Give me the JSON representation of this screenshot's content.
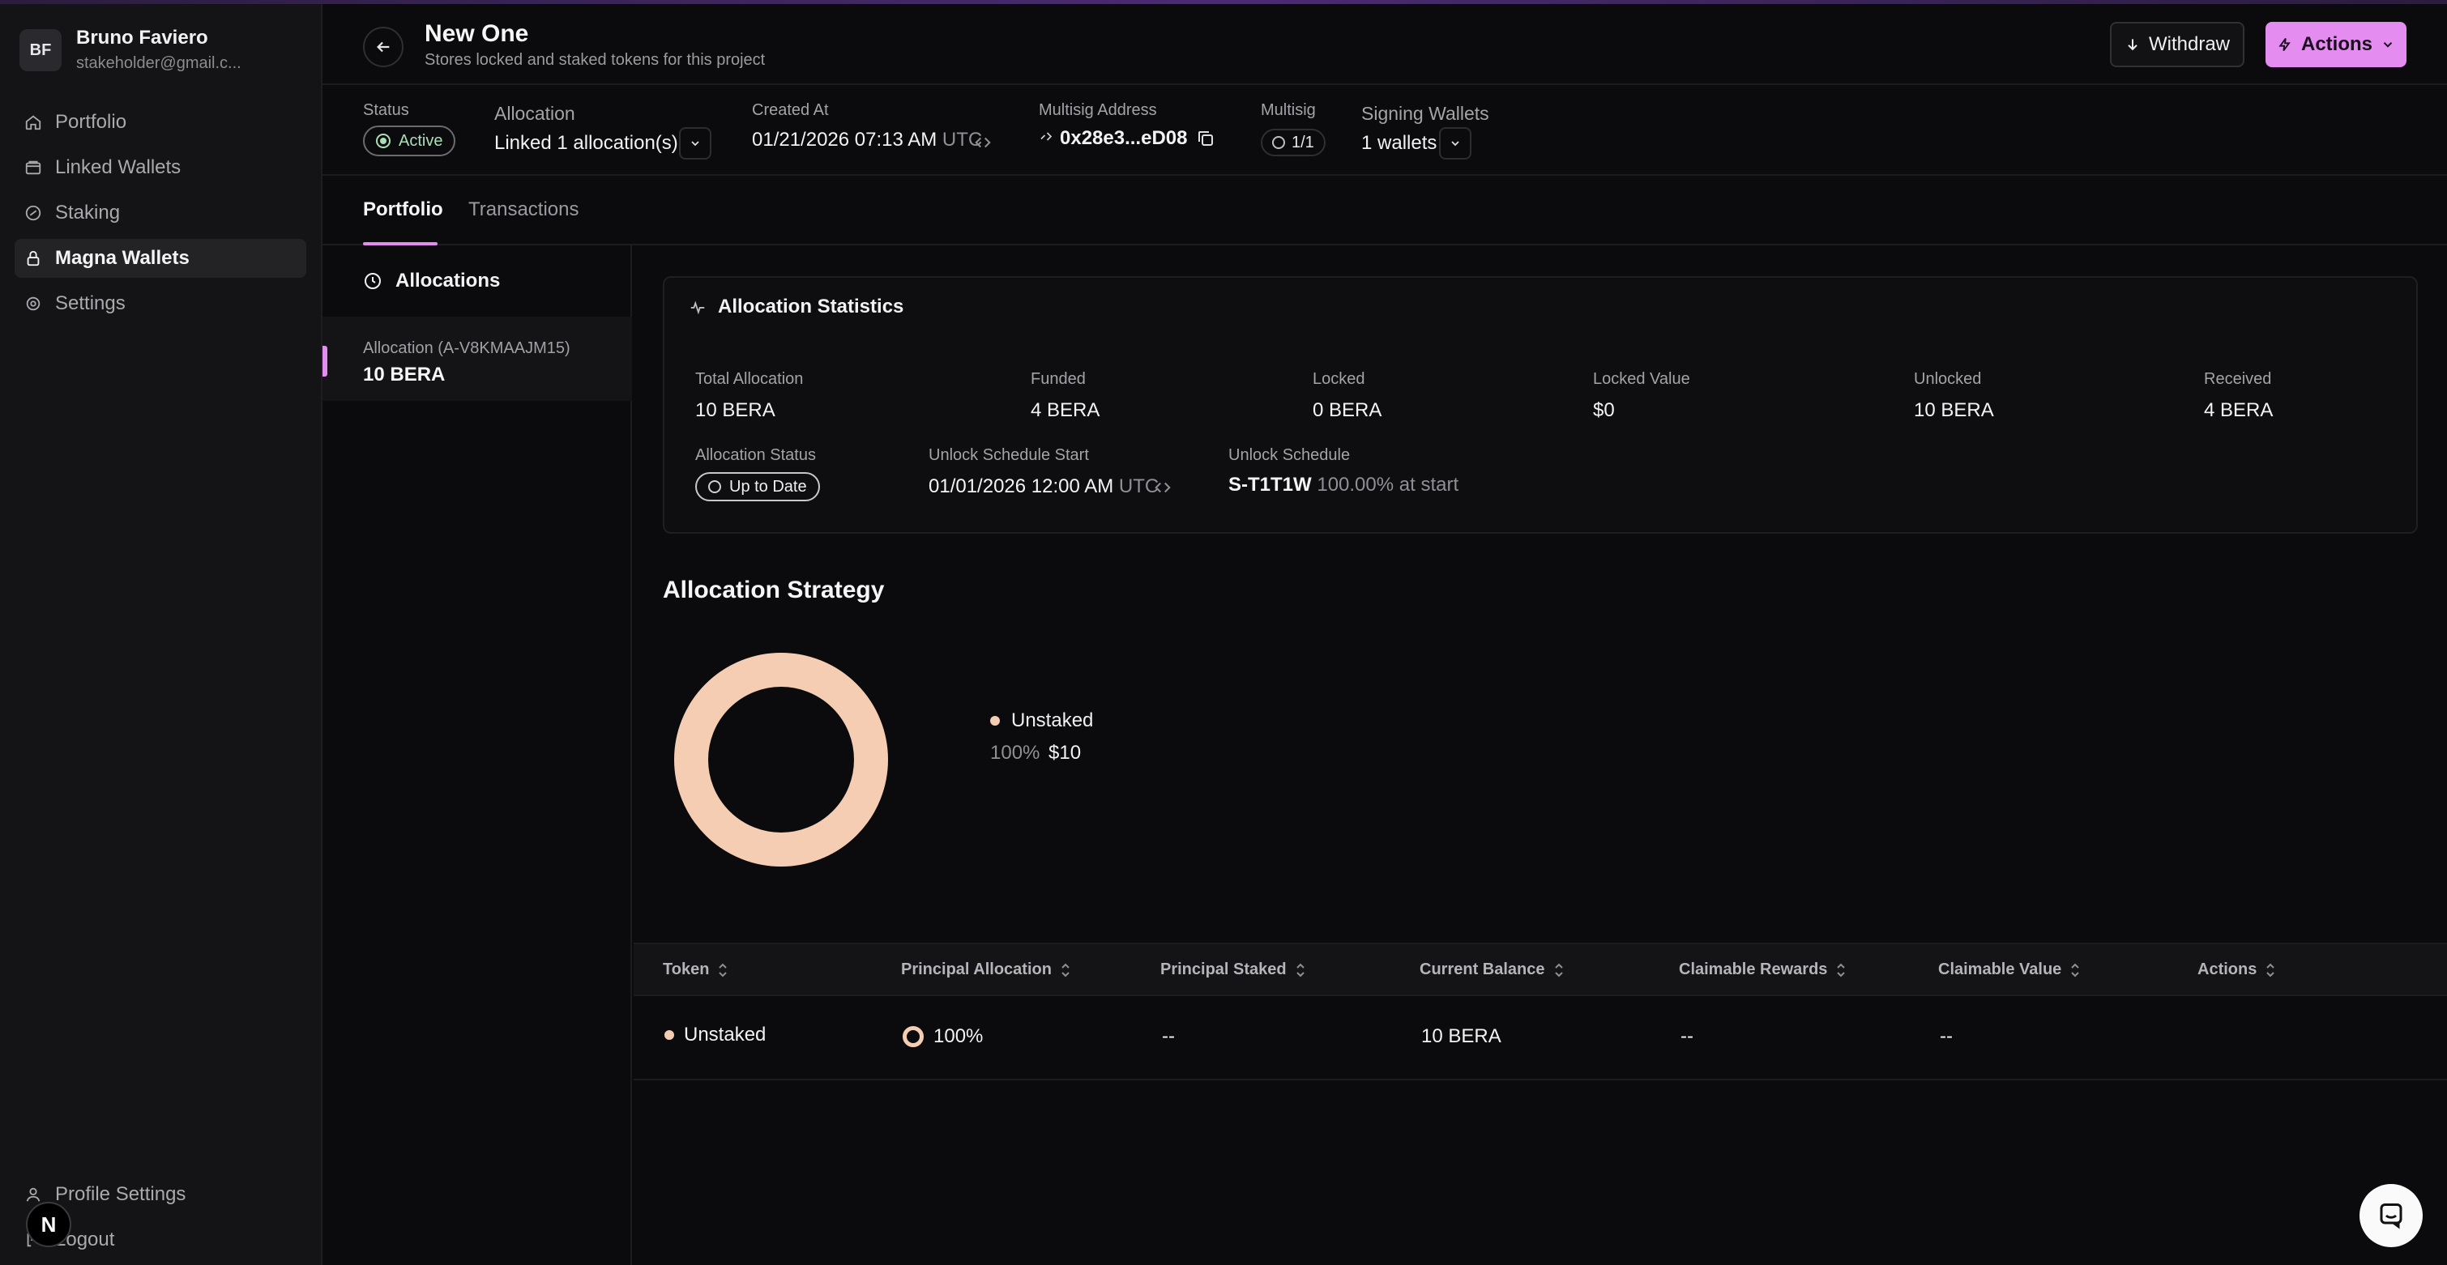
{
  "user": {
    "initials": "BF",
    "name": "Bruno Faviero",
    "email": "stakeholder@gmail.c..."
  },
  "nav": [
    {
      "label": "Portfolio",
      "icon": "home-icon",
      "active": false
    },
    {
      "label": "Linked Wallets",
      "icon": "wallet-icon",
      "active": false
    },
    {
      "label": "Staking",
      "icon": "staking-icon",
      "active": false
    },
    {
      "label": "Magna Wallets",
      "icon": "lock-icon",
      "active": true
    },
    {
      "label": "Settings",
      "icon": "gear-icon",
      "active": false
    }
  ],
  "bottom_nav": [
    {
      "label": "Profile Settings",
      "icon": "user-icon"
    },
    {
      "label": "Logout",
      "icon": "logout-icon"
    }
  ],
  "badge": {
    "letter": "N"
  },
  "header": {
    "title": "New One",
    "subtitle": "Stores locked and staked tokens for this project",
    "withdraw_label": "Withdraw",
    "actions_label": "Actions"
  },
  "info": {
    "status_label": "Status",
    "status_value": "Active",
    "allocation_label": "Allocation",
    "allocation_value": "Linked 1 allocation(s)",
    "created_label": "Created At",
    "created_value": "01/21/2026 07:13 AM",
    "created_tz": "UTC",
    "multisig_address_label": "Multisig Address",
    "multisig_address_value": "0x28e3...eD08",
    "multisig_label": "Multisig",
    "multisig_value": "1/1",
    "signing_label": "Signing Wallets",
    "signing_value": "1 wallets"
  },
  "tabs": [
    {
      "label": "Portfolio",
      "active": true
    },
    {
      "label": "Transactions",
      "active": false
    }
  ],
  "allocations": {
    "heading": "Allocations",
    "items": [
      {
        "name": "Allocation (A-V8KMAAJM15)",
        "amount": "10 BERA"
      }
    ]
  },
  "stats": {
    "title": "Allocation Statistics",
    "total_allocation": {
      "label": "Total Allocation",
      "value": "10 BERA"
    },
    "funded": {
      "label": "Funded",
      "value": "4 BERA"
    },
    "locked": {
      "label": "Locked",
      "value": "0 BERA"
    },
    "locked_value": {
      "label": "Locked Value",
      "value": "$0"
    },
    "unlocked": {
      "label": "Unlocked",
      "value": "10 BERA"
    },
    "received": {
      "label": "Received",
      "value": "4 BERA"
    },
    "allocation_status": {
      "label": "Allocation Status",
      "value": "Up to Date"
    },
    "unlock_start": {
      "label": "Unlock Schedule Start",
      "value": "01/01/2026 12:00 AM",
      "tz": "UTC"
    },
    "unlock_schedule": {
      "label": "Unlock Schedule",
      "id": "S-T1T1W",
      "desc": "100.00% at start"
    }
  },
  "strategy": {
    "title": "Allocation Strategy",
    "legend_name": "Unstaked",
    "legend_pct": "100%",
    "legend_value": "$10",
    "color": "#f5cdb2"
  },
  "chart_data": {
    "type": "pie",
    "categories": [
      "Unstaked"
    ],
    "values": [
      100
    ]
  },
  "table": {
    "headers": [
      "Token",
      "Principal Allocation",
      "Principal Staked",
      "Current Balance",
      "Claimable Rewards",
      "Claimable Value",
      "Actions"
    ],
    "rows": [
      {
        "token": "Unstaked",
        "principal_allocation": "100%",
        "principal_staked": "--",
        "current_balance": "10 BERA",
        "claimable_rewards": "--",
        "claimable_value": "--"
      }
    ]
  },
  "colors": {
    "accent": "#e58cf0",
    "status_green": "#a8e0b6",
    "unstaked": "#f5cdb2"
  }
}
